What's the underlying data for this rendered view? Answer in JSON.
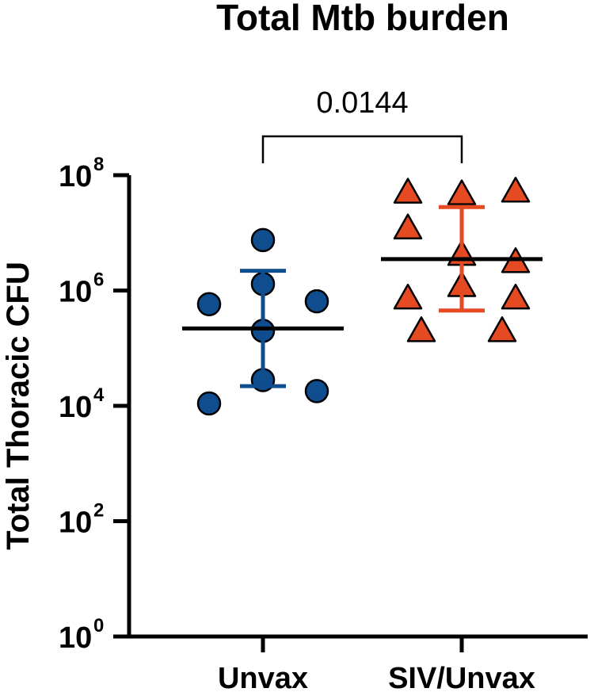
{
  "chart_data": {
    "type": "scatter",
    "title": "Total Mtb burden",
    "ylabel": "Total Thoracic CFU",
    "xlabel": "",
    "y_scale": "log10",
    "ylim": [
      1,
      100000000
    ],
    "y_ticks": [
      {
        "value": 1,
        "base": "10",
        "exp": "0"
      },
      {
        "value": 100,
        "base": "10",
        "exp": "2"
      },
      {
        "value": 10000,
        "base": "10",
        "exp": "4"
      },
      {
        "value": 1000000,
        "base": "10",
        "exp": "6"
      },
      {
        "value": 100000000,
        "base": "10",
        "exp": "8"
      }
    ],
    "categories": [
      "Unvax",
      "SIV/Unvax"
    ],
    "series": [
      {
        "category": "Unvax",
        "marker": "circle",
        "color": "#0F4D8F",
        "points": [
          {
            "offset": 0,
            "value": 7500000
          },
          {
            "offset": 0,
            "value": 1300000
          },
          {
            "offset": -1,
            "value": 580000
          },
          {
            "offset": 1,
            "value": 650000
          },
          {
            "offset": 0,
            "value": 200000
          },
          {
            "offset": 0,
            "value": 28000
          },
          {
            "offset": 1,
            "value": 18000
          },
          {
            "offset": -1,
            "value": 11000
          }
        ],
        "median": 220000,
        "error_low": 22000,
        "error_high": 2200000
      },
      {
        "category": "SIV/Unvax",
        "marker": "triangle",
        "color": "#E64A22",
        "points": [
          {
            "offset": -1,
            "value": 48000000
          },
          {
            "offset": 0,
            "value": 45000000
          },
          {
            "offset": 1,
            "value": 50000000
          },
          {
            "offset": -1,
            "value": 11500000
          },
          {
            "offset": 0,
            "value": 4000000
          },
          {
            "offset": 1,
            "value": 3000000
          },
          {
            "offset": 0,
            "value": 1150000
          },
          {
            "offset": -1,
            "value": 700000
          },
          {
            "offset": 1,
            "value": 700000
          },
          {
            "offset": -0.75,
            "value": 190000
          },
          {
            "offset": 0.75,
            "value": 190000
          }
        ],
        "median": 3500000,
        "error_low": 450000,
        "error_high": 28000000
      }
    ],
    "comparison": {
      "between": [
        "Unvax",
        "SIV/Unvax"
      ],
      "label": "0.0144"
    },
    "grid": false,
    "legend": "none"
  }
}
